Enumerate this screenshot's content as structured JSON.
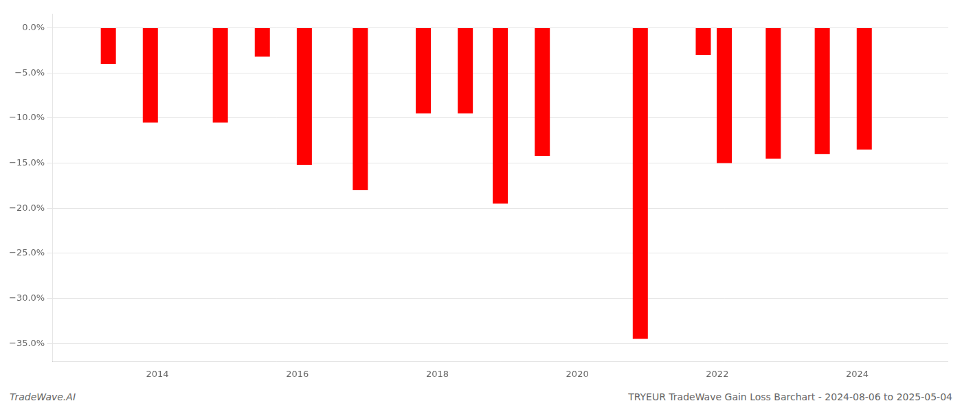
{
  "chart_data": {
    "type": "bar",
    "x": [
      2013.3,
      2013.9,
      2014.9,
      2015.5,
      2016.1,
      2016.9,
      2017.8,
      2018.4,
      2018.9,
      2019.5,
      2020.9,
      2021.8,
      2022.1,
      2022.8,
      2023.5,
      2024.1
    ],
    "values": [
      -4.0,
      -10.5,
      -10.5,
      -3.2,
      -15.2,
      -18.0,
      -9.5,
      -9.5,
      -19.5,
      -14.2,
      -34.5,
      -3.0,
      -15.0,
      -14.5,
      -14.0,
      -13.5
    ],
    "color": "#ff0000",
    "xlim": [
      2012.5,
      2025.3
    ],
    "xticks": [
      2014,
      2016,
      2018,
      2020,
      2022,
      2024
    ],
    "ylim": [
      -37,
      1.5
    ],
    "yticks": [
      {
        "value": 0,
        "label": "0.0%"
      },
      {
        "value": -5,
        "label": "−5.0%"
      },
      {
        "value": -10,
        "label": "−10.0%"
      },
      {
        "value": -15,
        "label": "−15.0%"
      },
      {
        "value": -20,
        "label": "−20.0%"
      },
      {
        "value": -25,
        "label": "−25.0%"
      },
      {
        "value": -30,
        "label": "−30.0%"
      },
      {
        "value": -35,
        "label": "−35.0%"
      }
    ],
    "grid": "y",
    "annotations": [
      "TradeWave.AI",
      "TRYEUR TradeWave Gain Loss Barchart - 2024-08-06 to 2025-05-04"
    ]
  }
}
